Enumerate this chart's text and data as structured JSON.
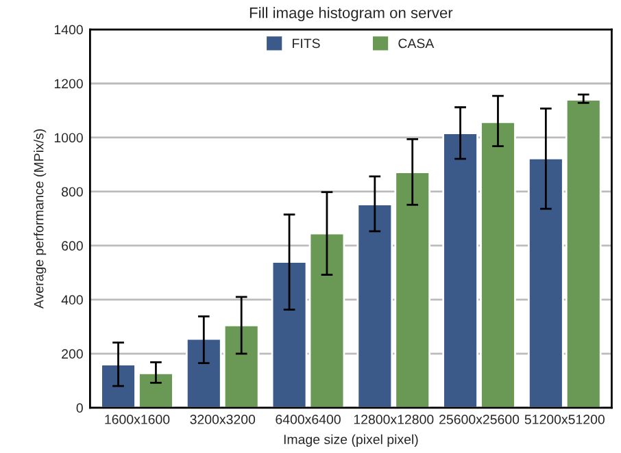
{
  "chart_data": {
    "type": "bar",
    "title": "Fill image histogram on server",
    "xlabel": "Image size (pixel pixel)",
    "ylabel": "Average performance (MPix/s)",
    "categories": [
      "1600x1600",
      "3200x3200",
      "6400x6400",
      "12800x12800",
      "25600x25600",
      "51200x51200"
    ],
    "series": [
      {
        "name": "FITS",
        "color": "#3b5a8a",
        "values": [
          160,
          255,
          540,
          753,
          1016,
          923
        ],
        "errors": [
          [
            80,
            241
          ],
          [
            165,
            338
          ],
          [
            363,
            715
          ],
          [
            653,
            856
          ],
          [
            921,
            1112
          ],
          [
            736,
            1107
          ]
        ]
      },
      {
        "name": "CASA",
        "color": "#6a9955",
        "values": [
          128,
          305,
          645,
          872,
          1057,
          1140
        ],
        "errors": [
          [
            92,
            168
          ],
          [
            200,
            410
          ],
          [
            492,
            798
          ],
          [
            751,
            994
          ],
          [
            968,
            1154
          ],
          [
            1128,
            1159
          ]
        ]
      }
    ],
    "ylim": [
      0,
      1400
    ],
    "yticks": [
      0,
      200,
      400,
      600,
      800,
      1000,
      1200,
      1400
    ],
    "grid": "y",
    "legend": "top"
  }
}
